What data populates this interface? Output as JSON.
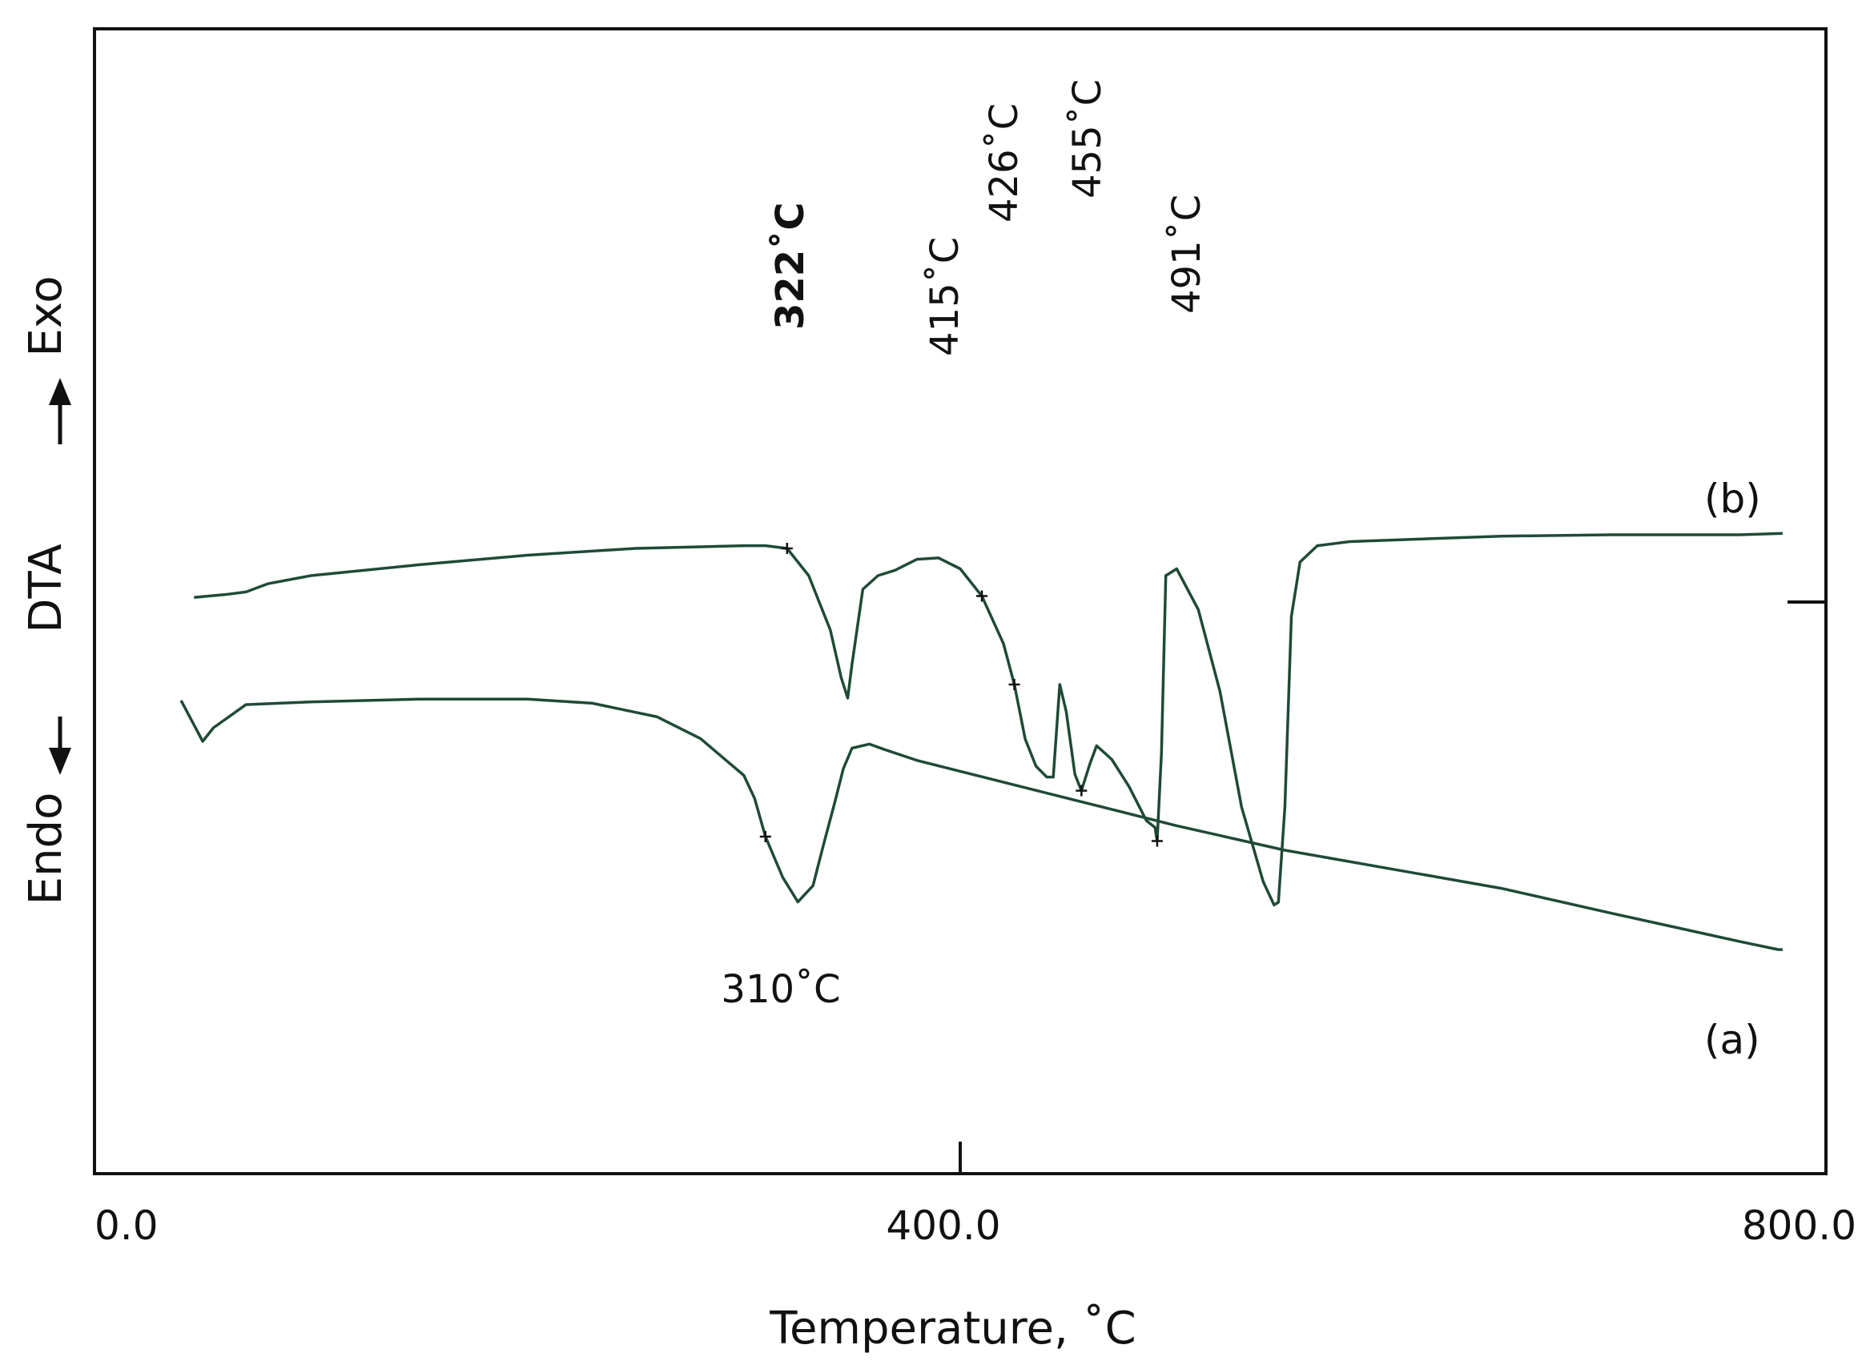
{
  "chart_data": {
    "type": "line",
    "xlabel": "Temperature, ˚C",
    "ylabel": {
      "exo": "Exo",
      "middle": "DTA",
      "endo": "Endo"
    },
    "xlim": [
      0,
      800
    ],
    "xticks": [
      {
        "value": 0,
        "label": "0.0"
      },
      {
        "value": 400,
        "label": "400.0"
      },
      {
        "value": 800,
        "label": "800.0"
      }
    ],
    "grid": false,
    "line_color": "#1f4a36",
    "series": [
      {
        "name": "(b)",
        "points": [
          [
            46,
            -46
          ],
          [
            60,
            -44
          ],
          [
            70,
            -42
          ],
          [
            80,
            -36
          ],
          [
            100,
            -30
          ],
          [
            150,
            -22
          ],
          [
            200,
            -15
          ],
          [
            250,
            -10
          ],
          [
            300,
            -8
          ],
          [
            310,
            -8
          ],
          [
            320,
            -10
          ],
          [
            330,
            -30
          ],
          [
            340,
            -70
          ],
          [
            345,
            -105
          ],
          [
            348,
            -120
          ],
          [
            350,
            -95
          ],
          [
            355,
            -40
          ],
          [
            362,
            -30
          ],
          [
            370,
            -26
          ],
          [
            380,
            -18
          ],
          [
            390,
            -17
          ],
          [
            400,
            -25
          ],
          [
            410,
            -45
          ],
          [
            420,
            -80
          ],
          [
            425,
            -110
          ],
          [
            430,
            -150
          ],
          [
            435,
            -170
          ],
          [
            440,
            -178
          ],
          [
            443,
            -178
          ],
          [
            446,
            -110
          ],
          [
            449,
            -130
          ],
          [
            453,
            -176
          ],
          [
            456,
            -188
          ],
          [
            460,
            -168
          ],
          [
            463,
            -155
          ],
          [
            470,
            -165
          ],
          [
            478,
            -185
          ],
          [
            486,
            -210
          ],
          [
            490,
            -215
          ],
          [
            491,
            -225
          ],
          [
            493,
            -160
          ],
          [
            495,
            -30
          ],
          [
            500,
            -25
          ],
          [
            510,
            -55
          ],
          [
            520,
            -115
          ],
          [
            530,
            -200
          ],
          [
            540,
            -255
          ],
          [
            545,
            -272
          ],
          [
            547,
            -270
          ],
          [
            550,
            -200
          ],
          [
            553,
            -60
          ],
          [
            557,
            -20
          ],
          [
            565,
            -8
          ],
          [
            580,
            -5
          ],
          [
            650,
            -1
          ],
          [
            700,
            0
          ],
          [
            760,
            0
          ],
          [
            780,
            1
          ]
        ]
      },
      {
        "name": "(a)",
        "points": [
          [
            40,
            0
          ],
          [
            46,
            -18
          ],
          [
            50,
            -30
          ],
          [
            55,
            -20
          ],
          [
            70,
            -3
          ],
          [
            100,
            -1
          ],
          [
            150,
            1
          ],
          [
            200,
            1
          ],
          [
            230,
            -2
          ],
          [
            260,
            -12
          ],
          [
            280,
            -28
          ],
          [
            300,
            -55
          ],
          [
            305,
            -72
          ],
          [
            310,
            -100
          ],
          [
            318,
            -130
          ],
          [
            325,
            -148
          ],
          [
            332,
            -136
          ],
          [
            337,
            -105
          ],
          [
            342,
            -75
          ],
          [
            346,
            -50
          ],
          [
            350,
            -35
          ],
          [
            358,
            -32
          ],
          [
            365,
            -36
          ],
          [
            380,
            -44
          ],
          [
            400,
            -52
          ],
          [
            450,
            -72
          ],
          [
            500,
            -92
          ],
          [
            550,
            -110
          ],
          [
            600,
            -124
          ],
          [
            650,
            -138
          ],
          [
            700,
            -156
          ],
          [
            740,
            -170
          ],
          [
            760,
            -177
          ],
          [
            778,
            -183
          ],
          [
            780,
            -183
          ]
        ]
      }
    ],
    "annotations": [
      {
        "text": "322˚C",
        "series": "(b)",
        "x": 322
      },
      {
        "text": "415˚C",
        "series": "(b)",
        "x": 415
      },
      {
        "text": "426˚C",
        "series": "(b)",
        "x": 426
      },
      {
        "text": "455˚C",
        "series": "(b)",
        "x": 455
      },
      {
        "text": "491˚C",
        "series": "(b)",
        "x": 491
      },
      {
        "text": "310˚C",
        "series": "(a)",
        "x": 310
      }
    ]
  }
}
